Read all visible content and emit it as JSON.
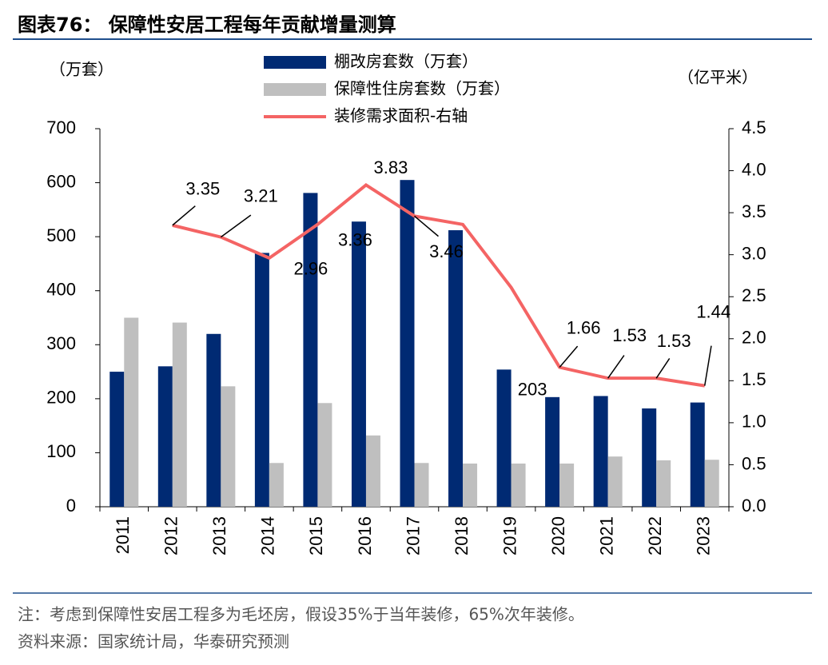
{
  "chart_data": {
    "type": "bar-line",
    "title": "图表76：  保障性安居工程每年贡献增量测算",
    "y_label": "（万套）",
    "y2_label": "（亿平米）",
    "categories": [
      "2011",
      "2012",
      "2013",
      "2014",
      "2015",
      "2016",
      "2017",
      "2018",
      "2019",
      "2020",
      "2021",
      "2022",
      "2023"
    ],
    "series": [
      {
        "name": "棚改房套数（万套）",
        "type": "bar",
        "color": "#002a73",
        "values": [
          250,
          260,
          320,
          470,
          581,
          528,
          605,
          512,
          254,
          203,
          205,
          182,
          193
        ],
        "value_labels": [
          null,
          null,
          null,
          null,
          null,
          null,
          null,
          null,
          null,
          "203",
          null,
          null,
          null
        ]
      },
      {
        "name": "保障性住房套数（万套）",
        "type": "bar",
        "color": "#bfbfbf",
        "values": [
          350,
          341,
          223,
          81,
          192,
          132,
          81,
          80,
          80,
          80,
          93,
          86,
          87
        ]
      },
      {
        "name": "装修需求面积-右轴",
        "type": "line",
        "axis": "y2",
        "color": "#f46464",
        "values": [
          null,
          3.35,
          3.21,
          2.96,
          3.36,
          3.83,
          3.46,
          3.36,
          2.61,
          1.66,
          1.53,
          1.53,
          1.44
        ],
        "value_labels": [
          null,
          "3.35",
          "3.21",
          "2.96",
          "3.36",
          "3.83",
          "3.46",
          null,
          null,
          "1.66",
          "1.53",
          "1.53",
          "1.44"
        ]
      }
    ],
    "ylim": [
      0,
      700
    ],
    "yticks": [
      0,
      100,
      200,
      300,
      400,
      500,
      600,
      700
    ],
    "y2lim": [
      0,
      4.5
    ],
    "y2ticks": [
      {
        "value": 0,
        "label": "0.0"
      },
      {
        "value": 0.5,
        "label": "0.5"
      },
      {
        "value": 1,
        "label": "1.0"
      },
      {
        "value": 1.5,
        "label": "1.5"
      },
      {
        "value": 2,
        "label": "2.0"
      },
      {
        "value": 2.5,
        "label": "2.5"
      },
      {
        "value": 3,
        "label": "3.0"
      },
      {
        "value": 3.5,
        "label": "3.5"
      },
      {
        "value": 4,
        "label": "4.0"
      },
      {
        "value": 4.5,
        "label": "4.5"
      }
    ],
    "note": "注：考虑到保障性安居工程多为毛坯房，假设35%于当年装修，65%次年装修。",
    "source": "资料来源：国家统计局，华泰研究预测"
  }
}
